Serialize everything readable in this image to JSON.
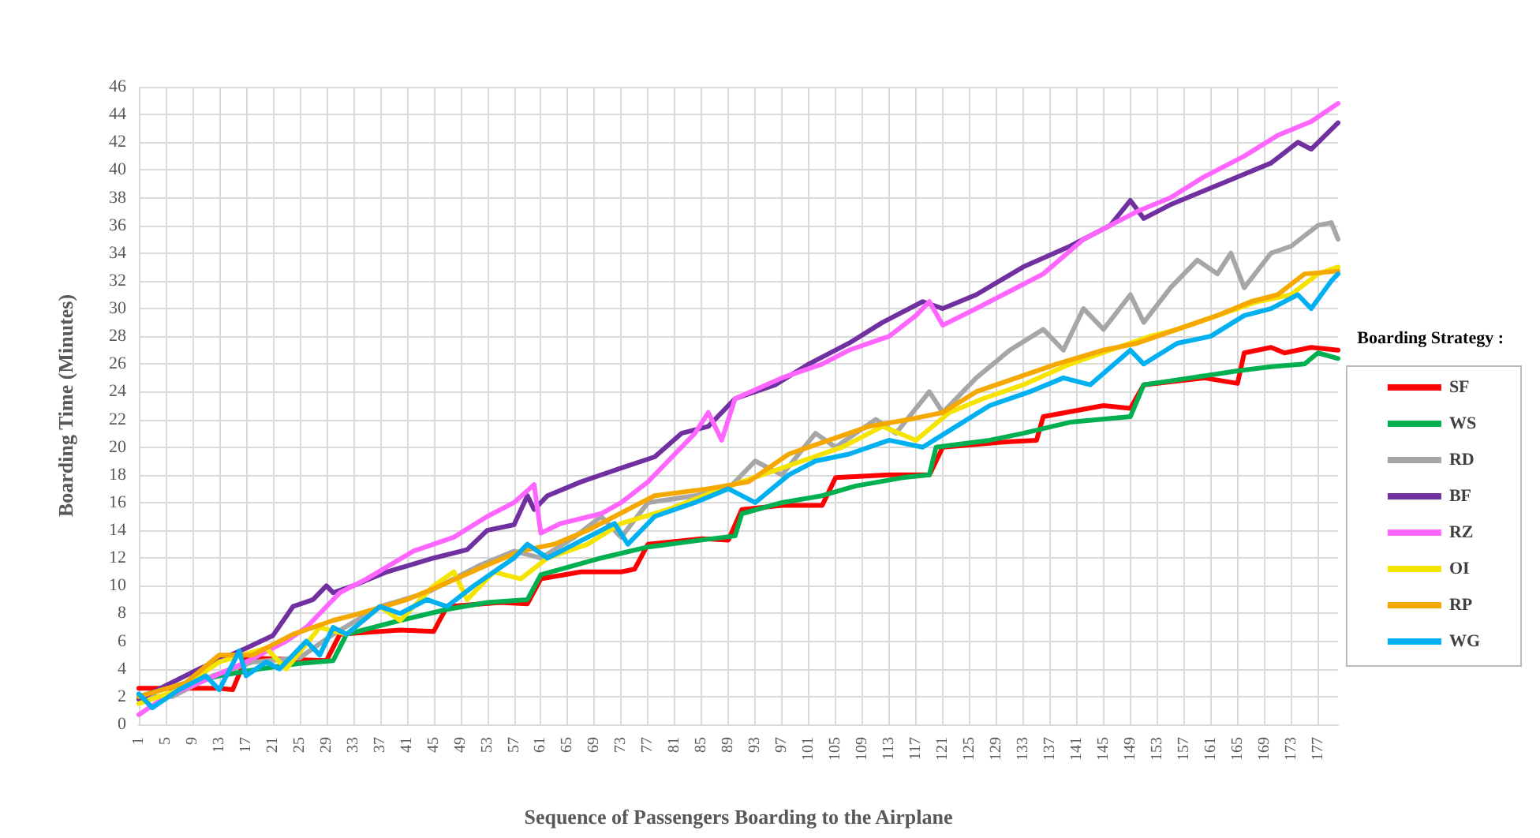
{
  "chart_data": {
    "type": "line",
    "xlabel": "Sequence of Passengers Boarding to the Airplane",
    "ylabel": "Boarding Time (Minutes)",
    "legend_title": "Boarding Strategy :",
    "legend": "right",
    "grid": true,
    "marker": "none",
    "line_style": "solid",
    "xlim": [
      1,
      180
    ],
    "xticks": [
      1,
      5,
      9,
      13,
      17,
      21,
      25,
      29,
      33,
      37,
      41,
      45,
      49,
      53,
      57,
      61,
      65,
      69,
      73,
      77,
      81,
      85,
      89,
      93,
      97,
      101,
      105,
      109,
      113,
      117,
      121,
      125,
      129,
      133,
      137,
      141,
      145,
      149,
      153,
      157,
      161,
      165,
      169,
      173,
      177
    ],
    "ylim": [
      0,
      46
    ],
    "yticks": [
      0,
      2,
      4,
      6,
      8,
      10,
      12,
      14,
      16,
      18,
      20,
      22,
      24,
      26,
      28,
      30,
      32,
      34,
      36,
      38,
      40,
      42,
      44,
      46
    ],
    "series": [
      {
        "name": "SF",
        "color": "#ff0000",
        "x": [
          1,
          13,
          15,
          17,
          29,
          31,
          40,
          45,
          47,
          55,
          59,
          61,
          67,
          73,
          75,
          77,
          85,
          89,
          91,
          97,
          103,
          105,
          113,
          119,
          121,
          131,
          135,
          136,
          145,
          149,
          151,
          160,
          165,
          166,
          170,
          172,
          176,
          180
        ],
        "values": [
          2.6,
          2.6,
          2.5,
          4.8,
          4.6,
          6.5,
          6.8,
          6.7,
          8.5,
          8.8,
          8.7,
          10.5,
          11,
          11,
          11.2,
          13,
          13.4,
          13.3,
          15.5,
          15.8,
          15.8,
          17.8,
          18,
          18,
          20,
          20.4,
          20.5,
          22.2,
          23,
          22.8,
          24.5,
          25,
          24.6,
          26.8,
          27.2,
          26.8,
          27.2,
          27
        ]
      },
      {
        "name": "WS",
        "color": "#00b050",
        "x": [
          1,
          5,
          13,
          19,
          25,
          30,
          32,
          40,
          47,
          53,
          59,
          61,
          70,
          77,
          85,
          90,
          91,
          97,
          103,
          108,
          115,
          119,
          120,
          128,
          133,
          140,
          149,
          151,
          158,
          165,
          170,
          175,
          177,
          180
        ],
        "values": [
          2,
          2.6,
          3.5,
          4,
          4.4,
          4.6,
          6.5,
          7.5,
          8.3,
          8.8,
          9,
          10.8,
          12,
          12.8,
          13.3,
          13.6,
          15.2,
          16,
          16.5,
          17.2,
          17.8,
          18,
          20,
          20.5,
          21,
          21.8,
          22.2,
          24.5,
          25,
          25.5,
          25.8,
          26,
          26.8,
          26.4
        ]
      },
      {
        "name": "RD",
        "color": "#a6a6a6",
        "x": [
          1,
          6,
          12,
          18,
          25,
          30,
          37,
          44,
          52,
          57,
          61,
          66,
          70,
          73,
          77,
          84,
          89,
          93,
          97,
          102,
          105,
          111,
          114,
          119,
          121,
          126,
          131,
          136,
          139,
          142,
          145,
          149,
          151,
          155,
          159,
          162,
          164,
          166,
          170,
          173,
          177,
          179,
          180
        ],
        "values": [
          2,
          2,
          3.5,
          4.5,
          4.8,
          6.5,
          8.5,
          9.5,
          11.5,
          12.5,
          12,
          13.5,
          15,
          13.5,
          16,
          16.5,
          17,
          19,
          18,
          21,
          20,
          22,
          21,
          24,
          22.5,
          25,
          27,
          28.5,
          27,
          30,
          28.5,
          31,
          29,
          31.5,
          33.5,
          32.5,
          34,
          31.5,
          34,
          34.5,
          36,
          36.2,
          35
        ]
      },
      {
        "name": "BF",
        "color": "#7030a0",
        "x": [
          1,
          5,
          10,
          17,
          21,
          24,
          27,
          29,
          30,
          33,
          38,
          45,
          50,
          53,
          57,
          59,
          60,
          62,
          67,
          73,
          78,
          82,
          86,
          90,
          96,
          101,
          107,
          112,
          118,
          121,
          126,
          133,
          140,
          146,
          149,
          151,
          155,
          160,
          165,
          170,
          174,
          176,
          180
        ],
        "values": [
          1.8,
          2.8,
          4,
          5.5,
          6.4,
          8.5,
          9,
          10,
          9.5,
          10,
          11,
          12,
          12.6,
          14,
          14.4,
          16.5,
          15.5,
          16.5,
          17.5,
          18.5,
          19.3,
          21,
          21.5,
          23.5,
          24.5,
          26,
          27.5,
          29,
          30.5,
          30,
          31,
          33,
          34.5,
          36,
          37.8,
          36.5,
          37.5,
          38.5,
          39.5,
          40.5,
          42,
          41.5,
          43.4
        ]
      },
      {
        "name": "RZ",
        "color": "#ff66ff",
        "x": [
          1,
          5,
          10,
          17,
          23,
          26,
          28,
          31,
          35,
          42,
          48,
          53,
          57,
          60,
          61,
          64,
          70,
          73,
          77,
          80,
          84,
          86,
          88,
          90,
          97,
          103,
          107,
          113,
          117,
          119,
          121,
          126,
          130,
          136,
          142,
          146,
          150,
          155,
          160,
          166,
          171,
          176,
          180
        ],
        "values": [
          0.7,
          2,
          3,
          4.5,
          6,
          7,
          8,
          9.5,
          10.5,
          12.5,
          13.5,
          15,
          16,
          17.3,
          13.8,
          14.5,
          15.2,
          16,
          17.5,
          19,
          21,
          22.5,
          20.5,
          23.5,
          25,
          26,
          27,
          28,
          29.5,
          30.5,
          28.8,
          30,
          31,
          32.5,
          35,
          36,
          37,
          38,
          39.5,
          41,
          42.5,
          43.5,
          44.8
        ]
      },
      {
        "name": "OI",
        "color": "#f5e400",
        "x": [
          1,
          7,
          13,
          20,
          23,
          28,
          32,
          37,
          40,
          45,
          48,
          50,
          54,
          58,
          62,
          68,
          73,
          80,
          88,
          94,
          100,
          106,
          112,
          117,
          122,
          127,
          133,
          140,
          146,
          152,
          156,
          162,
          168,
          173,
          177,
          180
        ],
        "values": [
          1.5,
          2.5,
          4.5,
          5.5,
          4,
          7,
          6.5,
          8.5,
          7.5,
          10,
          11,
          9,
          11,
          10.5,
          12,
          13,
          14.5,
          15.5,
          17,
          18,
          19,
          20,
          21.5,
          20.5,
          22.5,
          23.5,
          24.5,
          26,
          27,
          28,
          28.5,
          29.5,
          30.5,
          31,
          32.5,
          33
        ]
      },
      {
        "name": "RP",
        "color": "#f5a800",
        "x": [
          1,
          8,
          13,
          18,
          24,
          30,
          34,
          41,
          46,
          53,
          58,
          63,
          68,
          72,
          78,
          86,
          92,
          98,
          104,
          110,
          116,
          121,
          126,
          132,
          138,
          145,
          150,
          156,
          162,
          167,
          171,
          175,
          180
        ],
        "values": [
          2,
          3,
          5,
          5,
          6.5,
          7.5,
          8,
          9,
          10,
          11.5,
          12.5,
          13,
          14,
          15,
          16.5,
          17,
          17.5,
          19.5,
          20.5,
          21.5,
          22,
          22.5,
          24,
          25,
          26,
          27,
          27.5,
          28.5,
          29.5,
          30.5,
          31,
          32.5,
          32.7
        ]
      },
      {
        "name": "WG",
        "color": "#00b0f0",
        "x": [
          1,
          3,
          7,
          11,
          13,
          16,
          17,
          20,
          22,
          26,
          28,
          30,
          32,
          37,
          40,
          44,
          47,
          51,
          54,
          57,
          59,
          62,
          66,
          72,
          74,
          78,
          84,
          89,
          93,
          98,
          102,
          107,
          113,
          118,
          123,
          128,
          134,
          139,
          143,
          149,
          151,
          156,
          161,
          166,
          170,
          174,
          176,
          179,
          180
        ],
        "values": [
          2.2,
          1.2,
          2.5,
          3.5,
          2.5,
          5.3,
          3.5,
          4.5,
          4,
          6,
          5,
          7,
          6.5,
          8.5,
          8,
          9,
          8.5,
          10,
          11,
          12,
          13,
          12,
          13,
          14.5,
          13,
          15,
          16,
          17,
          16,
          18,
          19,
          19.5,
          20.5,
          20,
          21.5,
          23,
          24,
          25,
          24.5,
          27,
          26,
          27.5,
          28,
          29.5,
          30,
          31,
          30,
          32,
          32.5
        ]
      }
    ]
  }
}
